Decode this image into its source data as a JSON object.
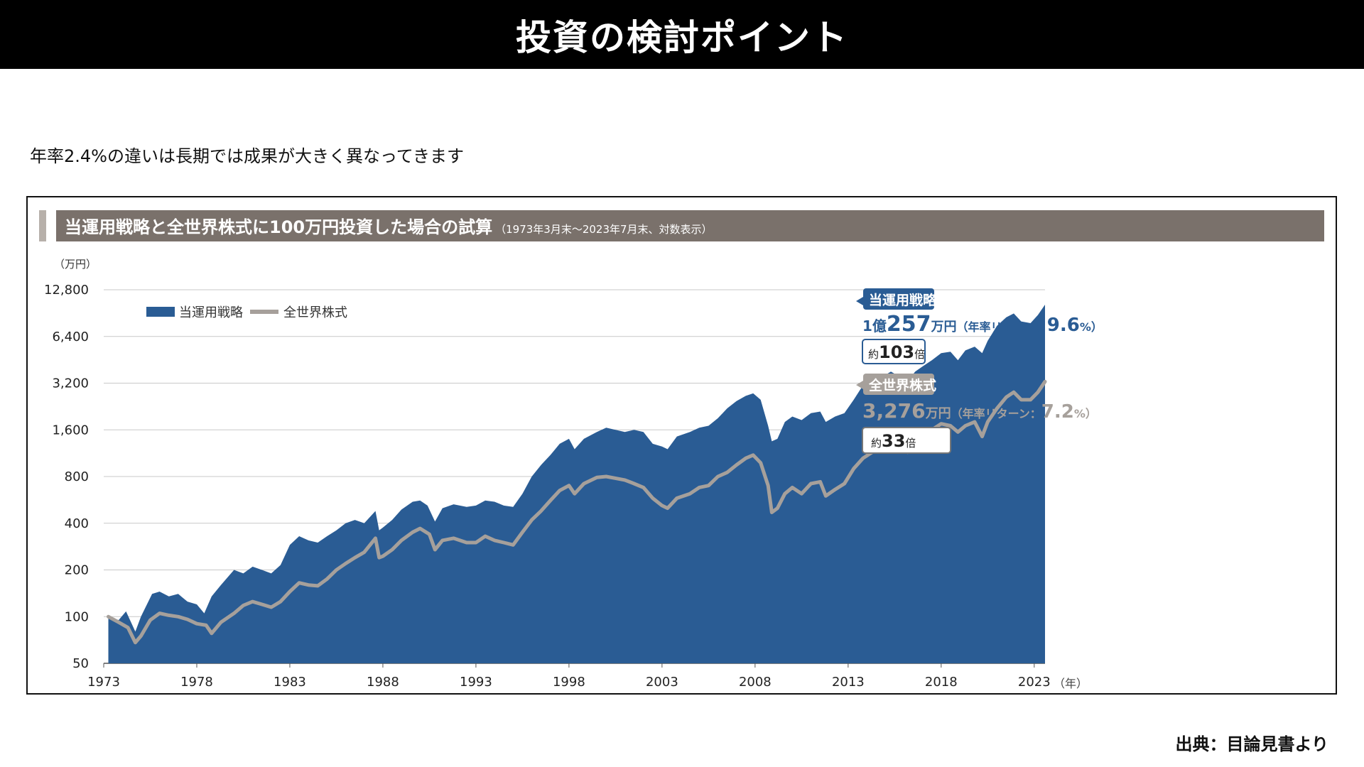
{
  "page": {
    "title": "投資の検討ポイント",
    "subtitle": "年率2.4%の違いは長期では成果が大きく異なってきます",
    "source": "出典：目論見書より"
  },
  "chart_header": {
    "title": "当運用戦略と全世界株式に100万円投資した場合の試算",
    "note": "（1973年3月末〜2023年7月末、対数表示）"
  },
  "colors": {
    "strategy": "#2a5c94",
    "world": "#a6a09b",
    "header_bg": "#7a716b",
    "header_accent": "#b7b0aa",
    "grid": "#c8c8c8"
  },
  "annotations": {
    "strategy": {
      "label": "当運用戦略",
      "value_prefix": "1億",
      "value_number": "257",
      "value_unit": "万円",
      "return_text": "（年率リターン：",
      "return_number": "9.6",
      "return_suffix": "%）",
      "multiple_prefix": "約",
      "multiple_number": "103",
      "multiple_suffix": "倍"
    },
    "world": {
      "label": "全世界株式",
      "value_number": "3,276",
      "value_unit": "万円",
      "return_text": "（年率リターン：",
      "return_number": "7.2",
      "return_suffix": "%）",
      "multiple_prefix": "約",
      "multiple_number": "33",
      "multiple_suffix": "倍"
    }
  },
  "chart_data": {
    "type": "area",
    "ylabel": "（万円）",
    "xlabel": "（年）",
    "yscale": "log2",
    "ylim": [
      50,
      12800
    ],
    "xlim": [
      1973.25,
      2023.58
    ],
    "yticks": [
      50,
      100,
      200,
      400,
      800,
      1600,
      3200,
      6400,
      12800
    ],
    "ytick_labels": [
      "50",
      "100",
      "200",
      "400",
      "800",
      "1,600",
      "3,200",
      "6,400",
      "12,800"
    ],
    "xticks": [
      1973,
      1978,
      1983,
      1988,
      1993,
      1998,
      2003,
      2008,
      2013,
      2018,
      2023
    ],
    "xtick_labels": [
      "1973",
      "1978",
      "1983",
      "1988",
      "1993",
      "1998",
      "2003",
      "2008",
      "2013",
      "2018",
      "2023"
    ],
    "legend_position": "top-left",
    "series": [
      {
        "name": "当運用戦略",
        "kind": "area",
        "points": [
          [
            1973.25,
            100
          ],
          [
            1973.8,
            95
          ],
          [
            1974.2,
            108
          ],
          [
            1974.7,
            80
          ],
          [
            1975.0,
            100
          ],
          [
            1975.6,
            140
          ],
          [
            1976.0,
            145
          ],
          [
            1976.5,
            135
          ],
          [
            1977.0,
            140
          ],
          [
            1977.5,
            125
          ],
          [
            1978.0,
            120
          ],
          [
            1978.4,
            105
          ],
          [
            1978.8,
            135
          ],
          [
            1979.3,
            160
          ],
          [
            1980.0,
            200
          ],
          [
            1980.5,
            190
          ],
          [
            1981.0,
            210
          ],
          [
            1981.5,
            200
          ],
          [
            1982.0,
            190
          ],
          [
            1982.5,
            215
          ],
          [
            1983.0,
            290
          ],
          [
            1983.5,
            330
          ],
          [
            1984.0,
            310
          ],
          [
            1984.5,
            300
          ],
          [
            1985.0,
            330
          ],
          [
            1985.5,
            360
          ],
          [
            1986.0,
            400
          ],
          [
            1986.5,
            420
          ],
          [
            1987.0,
            400
          ],
          [
            1987.6,
            480
          ],
          [
            1987.8,
            360
          ],
          [
            1988.0,
            375
          ],
          [
            1988.5,
            420
          ],
          [
            1989.0,
            490
          ],
          [
            1989.6,
            550
          ],
          [
            1990.0,
            560
          ],
          [
            1990.4,
            520
          ],
          [
            1990.8,
            410
          ],
          [
            1991.2,
            500
          ],
          [
            1991.8,
            530
          ],
          [
            1992.5,
            510
          ],
          [
            1993.0,
            520
          ],
          [
            1993.5,
            560
          ],
          [
            1994.0,
            550
          ],
          [
            1994.5,
            520
          ],
          [
            1995.0,
            510
          ],
          [
            1995.5,
            620
          ],
          [
            1996.0,
            800
          ],
          [
            1996.5,
            950
          ],
          [
            1997.0,
            1100
          ],
          [
            1997.5,
            1300
          ],
          [
            1998.0,
            1400
          ],
          [
            1998.3,
            1200
          ],
          [
            1998.8,
            1400
          ],
          [
            1999.5,
            1550
          ],
          [
            2000.0,
            1650
          ],
          [
            2000.5,
            1600
          ],
          [
            2001.0,
            1550
          ],
          [
            2001.5,
            1600
          ],
          [
            2002.0,
            1550
          ],
          [
            2002.5,
            1300
          ],
          [
            2003.0,
            1250
          ],
          [
            2003.3,
            1200
          ],
          [
            2003.8,
            1450
          ],
          [
            2004.5,
            1550
          ],
          [
            2005.0,
            1650
          ],
          [
            2005.5,
            1700
          ],
          [
            2006.0,
            1900
          ],
          [
            2006.5,
            2200
          ],
          [
            2007.0,
            2450
          ],
          [
            2007.5,
            2650
          ],
          [
            2007.9,
            2750
          ],
          [
            2008.3,
            2500
          ],
          [
            2008.7,
            1700
          ],
          [
            2008.9,
            1350
          ],
          [
            2009.2,
            1400
          ],
          [
            2009.6,
            1800
          ],
          [
            2010.0,
            1950
          ],
          [
            2010.5,
            1850
          ],
          [
            2011.0,
            2050
          ],
          [
            2011.5,
            2100
          ],
          [
            2011.8,
            1800
          ],
          [
            2012.3,
            1950
          ],
          [
            2012.8,
            2050
          ],
          [
            2013.3,
            2500
          ],
          [
            2013.8,
            3100
          ],
          [
            2014.3,
            3300
          ],
          [
            2014.8,
            3500
          ],
          [
            2015.3,
            3800
          ],
          [
            2015.8,
            3500
          ],
          [
            2016.2,
            3300
          ],
          [
            2016.6,
            3800
          ],
          [
            2017.0,
            4100
          ],
          [
            2017.5,
            4500
          ],
          [
            2018.0,
            5000
          ],
          [
            2018.5,
            5100
          ],
          [
            2018.9,
            4500
          ],
          [
            2019.3,
            5200
          ],
          [
            2019.8,
            5500
          ],
          [
            2020.2,
            5000
          ],
          [
            2020.5,
            6000
          ],
          [
            2021.0,
            7500
          ],
          [
            2021.5,
            8500
          ],
          [
            2021.9,
            9000
          ],
          [
            2022.3,
            8000
          ],
          [
            2022.8,
            7800
          ],
          [
            2023.2,
            8800
          ],
          [
            2023.58,
            10257
          ]
        ]
      },
      {
        "name": "全世界株式",
        "kind": "line",
        "points": [
          [
            1973.25,
            100
          ],
          [
            1973.8,
            92
          ],
          [
            1974.3,
            85
          ],
          [
            1974.7,
            68
          ],
          [
            1975.0,
            75
          ],
          [
            1975.5,
            95
          ],
          [
            1976.0,
            105
          ],
          [
            1976.5,
            102
          ],
          [
            1977.0,
            100
          ],
          [
            1977.5,
            96
          ],
          [
            1978.0,
            90
          ],
          [
            1978.5,
            88
          ],
          [
            1978.8,
            78
          ],
          [
            1979.3,
            92
          ],
          [
            1980.0,
            105
          ],
          [
            1980.5,
            118
          ],
          [
            1981.0,
            125
          ],
          [
            1981.5,
            120
          ],
          [
            1982.0,
            115
          ],
          [
            1982.5,
            125
          ],
          [
            1983.0,
            145
          ],
          [
            1983.5,
            165
          ],
          [
            1984.0,
            160
          ],
          [
            1984.5,
            158
          ],
          [
            1985.0,
            175
          ],
          [
            1985.5,
            200
          ],
          [
            1986.0,
            220
          ],
          [
            1986.5,
            240
          ],
          [
            1987.0,
            260
          ],
          [
            1987.6,
            320
          ],
          [
            1987.8,
            240
          ],
          [
            1988.0,
            245
          ],
          [
            1988.5,
            270
          ],
          [
            1989.0,
            310
          ],
          [
            1989.6,
            350
          ],
          [
            1990.0,
            370
          ],
          [
            1990.5,
            340
          ],
          [
            1990.8,
            270
          ],
          [
            1991.2,
            310
          ],
          [
            1991.8,
            320
          ],
          [
            1992.5,
            300
          ],
          [
            1993.0,
            300
          ],
          [
            1993.5,
            330
          ],
          [
            1994.0,
            310
          ],
          [
            1994.5,
            300
          ],
          [
            1995.0,
            290
          ],
          [
            1995.5,
            350
          ],
          [
            1996.0,
            420
          ],
          [
            1996.5,
            480
          ],
          [
            1997.0,
            560
          ],
          [
            1997.5,
            650
          ],
          [
            1998.0,
            700
          ],
          [
            1998.3,
            620
          ],
          [
            1998.8,
            720
          ],
          [
            1999.5,
            790
          ],
          [
            2000.0,
            800
          ],
          [
            2000.5,
            780
          ],
          [
            2001.0,
            760
          ],
          [
            2001.5,
            720
          ],
          [
            2002.0,
            680
          ],
          [
            2002.5,
            580
          ],
          [
            2003.0,
            520
          ],
          [
            2003.3,
            500
          ],
          [
            2003.8,
            580
          ],
          [
            2004.5,
            620
          ],
          [
            2005.0,
            680
          ],
          [
            2005.5,
            700
          ],
          [
            2006.0,
            800
          ],
          [
            2006.5,
            850
          ],
          [
            2007.0,
            950
          ],
          [
            2007.5,
            1050
          ],
          [
            2007.9,
            1100
          ],
          [
            2008.3,
            980
          ],
          [
            2008.7,
            700
          ],
          [
            2008.9,
            470
          ],
          [
            2009.2,
            500
          ],
          [
            2009.6,
            620
          ],
          [
            2010.0,
            680
          ],
          [
            2010.5,
            620
          ],
          [
            2011.0,
            720
          ],
          [
            2011.5,
            740
          ],
          [
            2011.8,
            600
          ],
          [
            2012.3,
            660
          ],
          [
            2012.8,
            720
          ],
          [
            2013.3,
            900
          ],
          [
            2013.8,
            1050
          ],
          [
            2014.3,
            1150
          ],
          [
            2014.8,
            1200
          ],
          [
            2015.3,
            1350
          ],
          [
            2015.8,
            1250
          ],
          [
            2016.2,
            1150
          ],
          [
            2016.6,
            1300
          ],
          [
            2017.0,
            1450
          ],
          [
            2017.5,
            1600
          ],
          [
            2018.0,
            1750
          ],
          [
            2018.5,
            1700
          ],
          [
            2018.9,
            1550
          ],
          [
            2019.3,
            1700
          ],
          [
            2019.8,
            1800
          ],
          [
            2020.2,
            1450
          ],
          [
            2020.5,
            1800
          ],
          [
            2021.0,
            2200
          ],
          [
            2021.5,
            2600
          ],
          [
            2021.9,
            2800
          ],
          [
            2022.3,
            2500
          ],
          [
            2022.8,
            2500
          ],
          [
            2023.2,
            2800
          ],
          [
            2023.58,
            3276
          ]
        ]
      }
    ]
  }
}
